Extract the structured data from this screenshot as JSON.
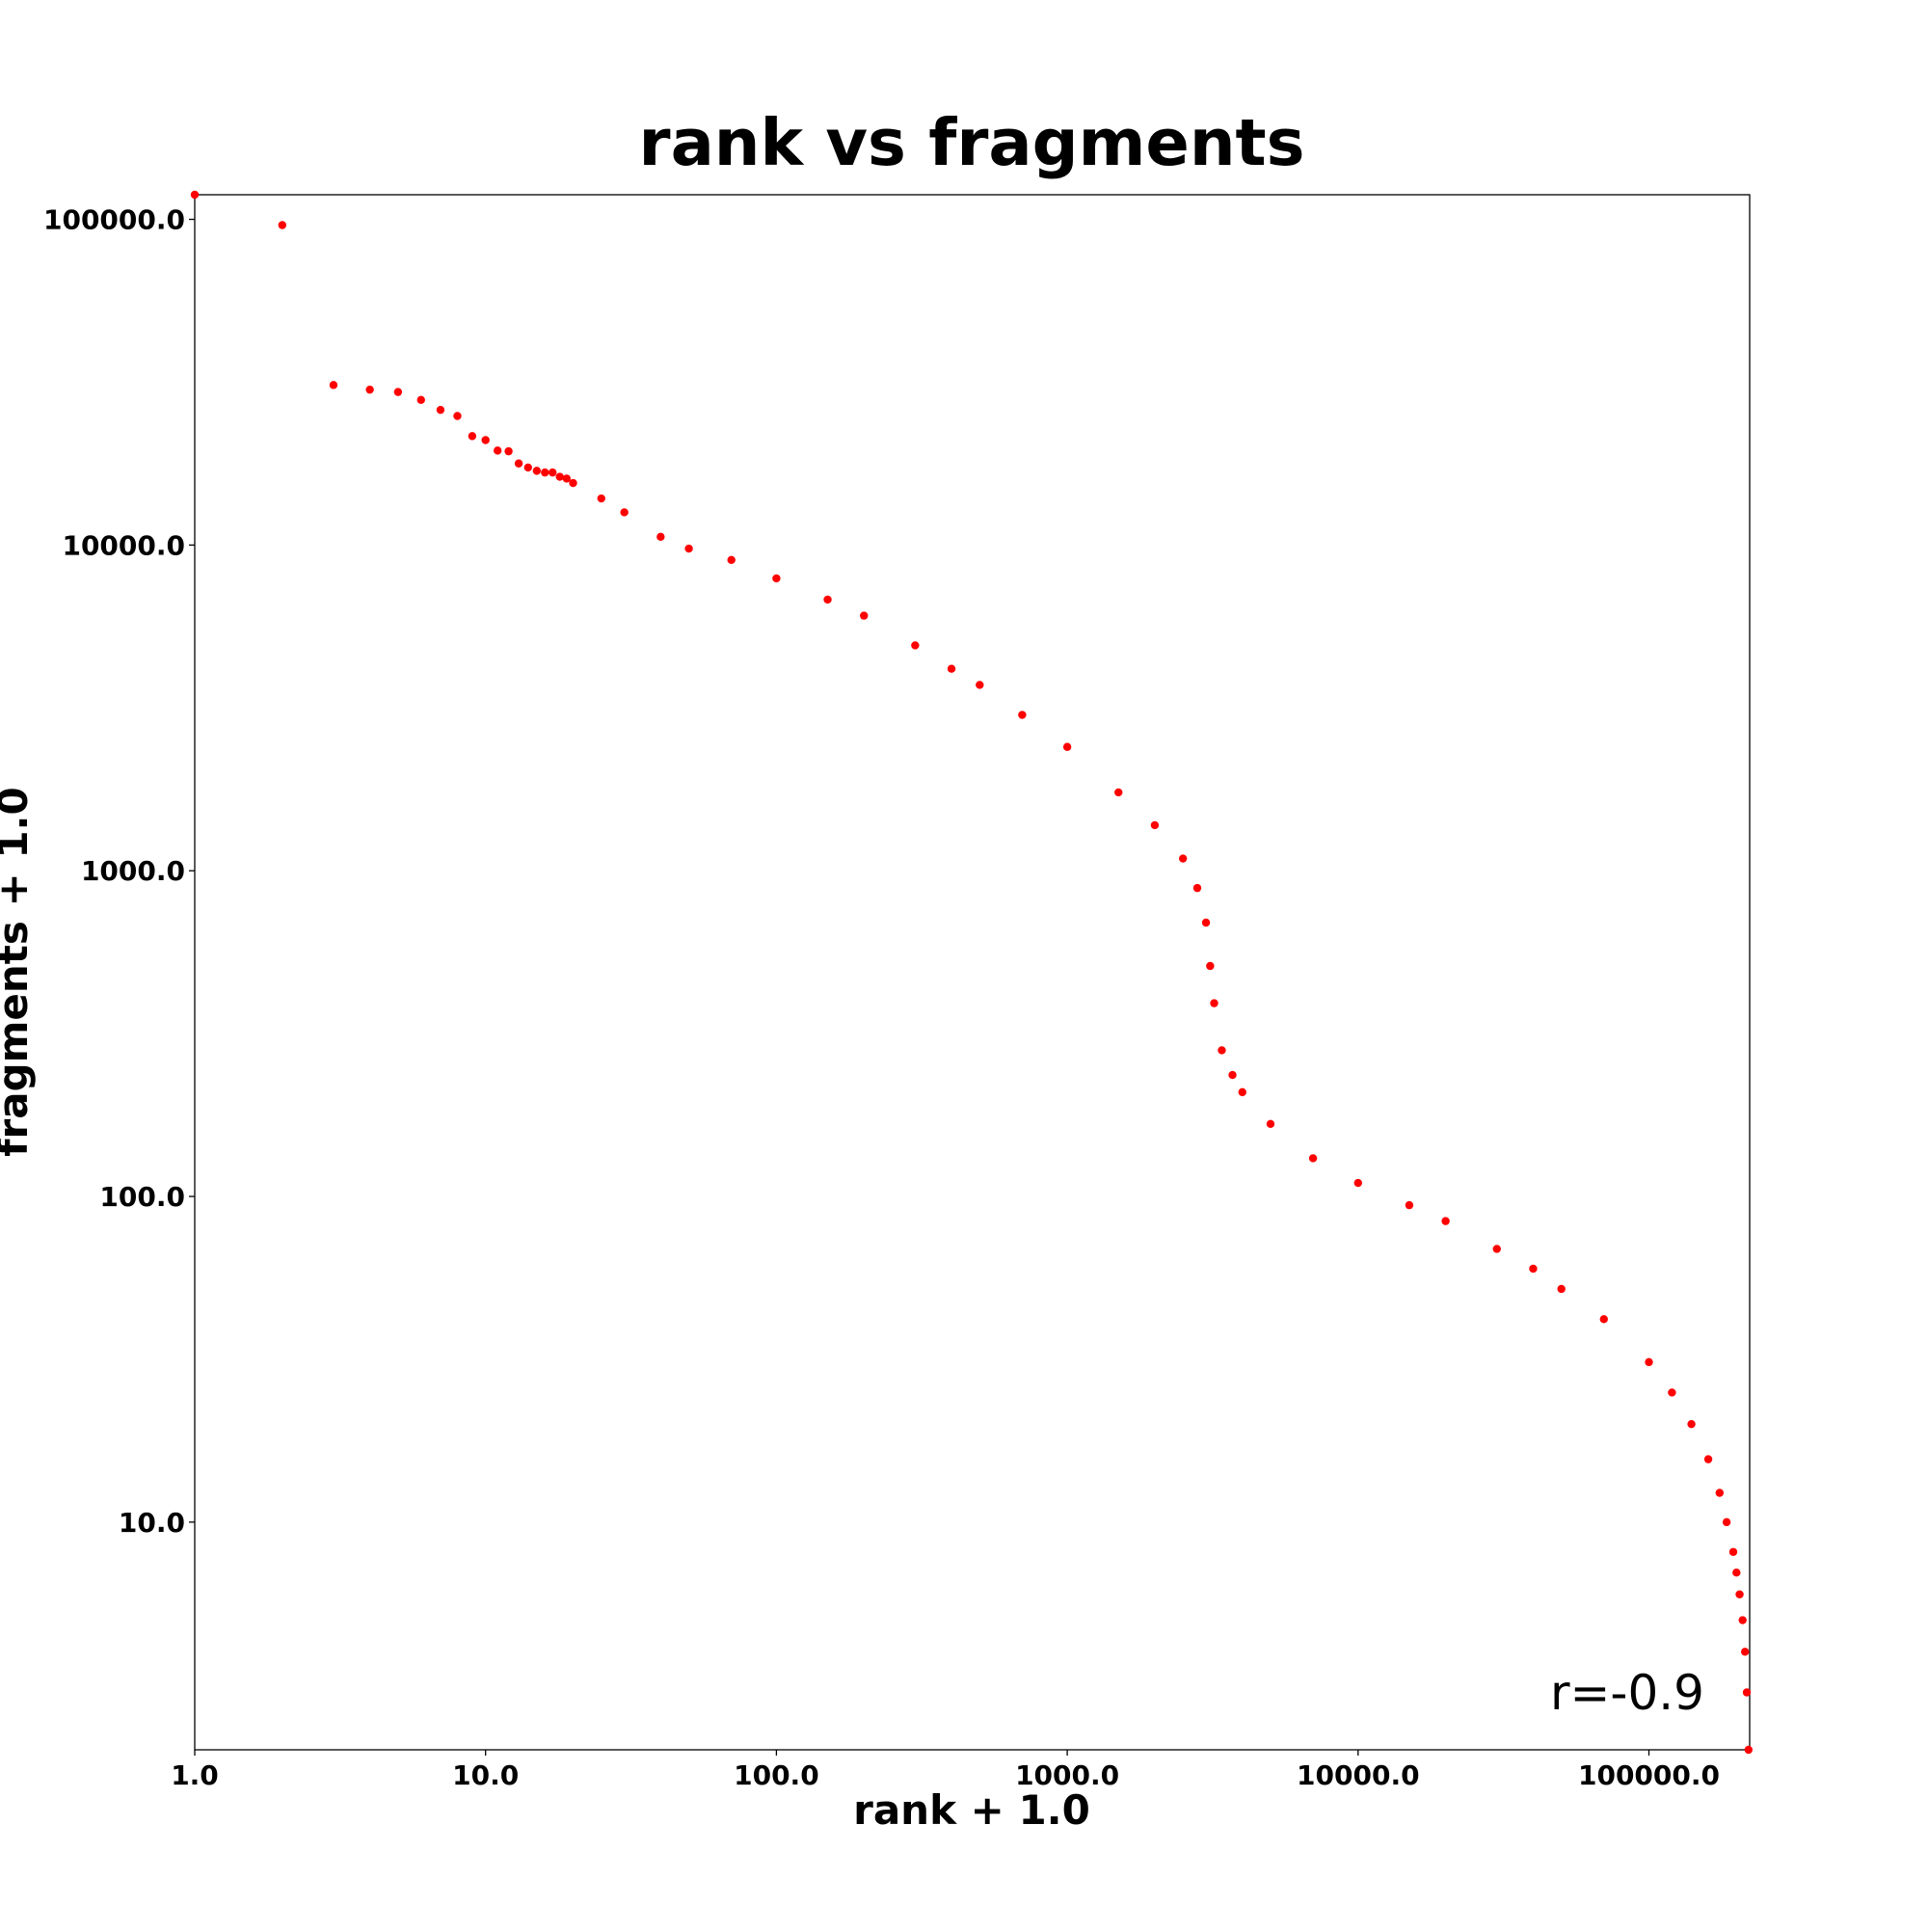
{
  "chart_data": {
    "type": "scatter",
    "title": "rank vs fragments",
    "xlabel": "rank + 1.0",
    "ylabel": "fragments + 1.0",
    "annotation": "r=-0.9",
    "xscale": "log",
    "yscale": "log",
    "color": "#ff0000",
    "xlim": [
      1,
      222000
    ],
    "ylim": [
      2,
      119000
    ],
    "xticks": [
      {
        "value": 1,
        "label": "1.0"
      },
      {
        "value": 10,
        "label": "10.0"
      },
      {
        "value": 100,
        "label": "100.0"
      },
      {
        "value": 1000,
        "label": "1000.0"
      },
      {
        "value": 10000,
        "label": "10000.0"
      },
      {
        "value": 100000,
        "label": "100000.0"
      }
    ],
    "yticks": [
      {
        "value": 10,
        "label": "10.0"
      },
      {
        "value": 100,
        "label": "100.0"
      },
      {
        "value": 1000,
        "label": "1000.0"
      },
      {
        "value": 10000,
        "label": "10000.0"
      },
      {
        "value": 100000,
        "label": "100000.0"
      }
    ],
    "x": [
      1,
      2,
      3,
      4,
      5,
      6,
      7,
      8,
      9,
      10,
      11,
      12,
      13,
      14,
      15,
      16,
      17,
      18,
      19,
      20,
      25,
      30,
      40,
      50,
      70,
      100,
      150,
      200,
      300,
      400,
      500,
      700,
      1000,
      1500,
      2000,
      2500,
      2800,
      3000,
      3100,
      3200,
      3400,
      3700,
      4000,
      5000,
      7000,
      10000,
      15000,
      20000,
      30000,
      40000,
      50000,
      70000,
      100000,
      120000,
      140000,
      160000,
      175000,
      185000,
      195000,
      200000,
      205000,
      210000,
      214000,
      217000,
      220000
    ],
    "values": [
      119000,
      96000,
      31000,
      30000,
      29500,
      27900,
      26000,
      24900,
      21600,
      21000,
      19500,
      19400,
      17800,
      17300,
      16900,
      16700,
      16700,
      16200,
      16000,
      15500,
      13900,
      12600,
      10600,
      9750,
      9000,
      7900,
      6800,
      6070,
      4920,
      4170,
      3720,
      3010,
      2400,
      1740,
      1380,
      1090,
      885,
      693,
      510,
      392,
      281,
      236,
      209,
      167,
      131,
      110,
      94,
      84,
      69,
      60,
      52,
      42,
      31,
      25,
      20,
      15.6,
      12.3,
      10,
      8.1,
      7,
      6,
      5,
      4,
      3,
      2
    ]
  }
}
